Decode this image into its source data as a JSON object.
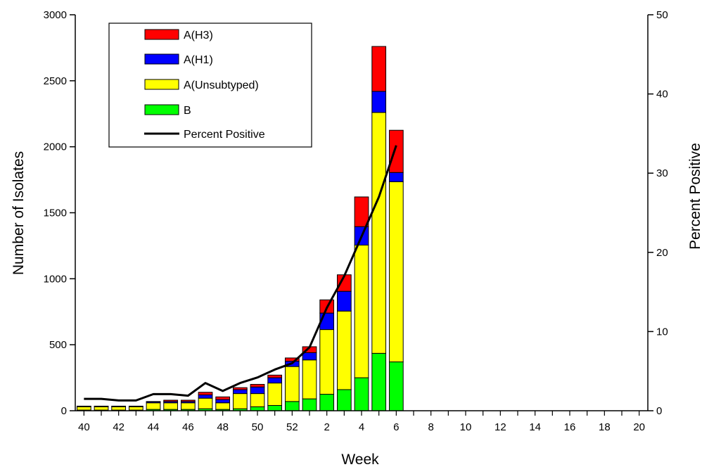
{
  "chart_data": {
    "type": "bar",
    "stacked": true,
    "title": "",
    "xlabel": "Week",
    "ylabel": "Number of Isolates",
    "y2label": "Percent Positive",
    "ylim": [
      0,
      3000
    ],
    "y2lim": [
      0,
      50
    ],
    "yticks": [
      0,
      500,
      1000,
      1500,
      2000,
      2500,
      3000
    ],
    "y2ticks": [
      0,
      10,
      20,
      30,
      40,
      50
    ],
    "categories": [
      "40",
      "41",
      "42",
      "43",
      "44",
      "45",
      "46",
      "47",
      "48",
      "49",
      "50",
      "51",
      "52",
      "1",
      "2",
      "3",
      "4",
      "5",
      "6",
      "7",
      "8",
      "9",
      "10",
      "11",
      "12",
      "13",
      "14",
      "15",
      "16",
      "17",
      "18",
      "19",
      "20"
    ],
    "tick_labels": [
      "40",
      "42",
      "44",
      "46",
      "48",
      "50",
      "52",
      "2",
      "4",
      "6",
      "8",
      "10",
      "12",
      "14",
      "16",
      "18",
      "20"
    ],
    "legend_position": "top-left",
    "series": [
      {
        "name": "B",
        "color": "#00ff00",
        "values": [
          5,
          5,
          5,
          5,
          10,
          10,
          10,
          15,
          10,
          15,
          30,
          40,
          70,
          90,
          125,
          160,
          250,
          435,
          370,
          null,
          null,
          null,
          null,
          null,
          null,
          null,
          null,
          null,
          null,
          null,
          null,
          null,
          null
        ]
      },
      {
        "name": "A(Unsubtyped)",
        "color": "#ffff00",
        "values": [
          25,
          25,
          25,
          25,
          50,
          50,
          50,
          80,
          50,
          115,
          100,
          170,
          265,
          295,
          490,
          595,
          1005,
          1825,
          1365,
          null,
          null,
          null,
          null,
          null,
          null,
          null,
          null,
          null,
          null,
          null,
          null,
          null,
          null
        ]
      },
      {
        "name": "A(H1)",
        "color": "#0000ff",
        "values": [
          3,
          3,
          3,
          3,
          8,
          10,
          10,
          25,
          25,
          30,
          50,
          40,
          40,
          55,
          125,
          150,
          140,
          160,
          70,
          null,
          null,
          null,
          null,
          null,
          null,
          null,
          null,
          null,
          null,
          null,
          null,
          null,
          null
        ]
      },
      {
        "name": "A(H3)",
        "color": "#ff0000",
        "values": [
          2,
          2,
          2,
          2,
          2,
          10,
          10,
          20,
          20,
          15,
          20,
          20,
          25,
          45,
          100,
          125,
          225,
          340,
          320,
          null,
          null,
          null,
          null,
          null,
          null,
          null,
          null,
          null,
          null,
          null,
          null,
          null,
          null
        ]
      }
    ],
    "line": {
      "name": "Percent Positive",
      "color": "#000000",
      "values": [
        1.5,
        1.5,
        1.3,
        1.3,
        2.1,
        2.1,
        1.9,
        3.5,
        2.5,
        3.5,
        4.2,
        5.2,
        6.0,
        8.0,
        13.0,
        17.0,
        22.0,
        27.0,
        33.5,
        null,
        null,
        null,
        null,
        null,
        null,
        null,
        null,
        null,
        null,
        null,
        null,
        null,
        null
      ]
    },
    "legend_order": [
      "A(H3)",
      "A(H1)",
      "A(Unsubtyped)",
      "B",
      "Percent Positive"
    ]
  }
}
